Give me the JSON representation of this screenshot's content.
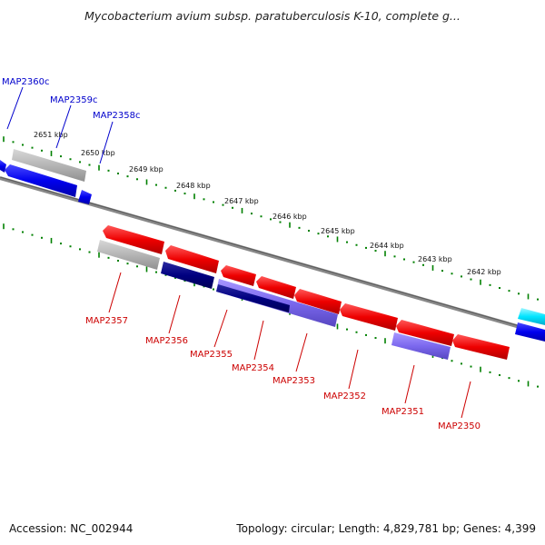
{
  "header": {
    "title": "Mycobacterium avium subsp. paratuberculosis K-10, complete g..."
  },
  "footer": {
    "accession": "Accession: NC_002944",
    "topology": "Topology: circular; Length: 4,829,781 bp; Genes: 4,399"
  },
  "colors": {
    "forward_gene": "#0000ee",
    "reverse_gene": "#ee0000",
    "gray_gene": "#b5b5b5",
    "navy_gene": "#000080",
    "slate_gene": "#7b68ee",
    "cyan_gene": "#00e5ff",
    "tick": "#008000",
    "backbone": "#777777"
  },
  "ruler": [
    {
      "label": "2651 kbp"
    },
    {
      "label": "2650 kbp"
    },
    {
      "label": "2649 kbp"
    },
    {
      "label": "2648 kbp"
    },
    {
      "label": "2647 kbp"
    },
    {
      "label": "2646 kbp"
    },
    {
      "label": "2645 kbp"
    },
    {
      "label": "2644 kbp"
    },
    {
      "label": "2643 kbp"
    },
    {
      "label": "2642 kbp"
    }
  ],
  "forward_labels": [
    {
      "label": "MAP2360c"
    },
    {
      "label": "MAP2359c"
    },
    {
      "label": "MAP2358c"
    }
  ],
  "reverse_labels": [
    {
      "label": "MAP2357"
    },
    {
      "label": "MAP2356"
    },
    {
      "label": "MAP2355"
    },
    {
      "label": "MAP2354"
    },
    {
      "label": "MAP2353"
    },
    {
      "label": "MAP2352"
    },
    {
      "label": "MAP2351"
    },
    {
      "label": "MAP2350"
    }
  ]
}
